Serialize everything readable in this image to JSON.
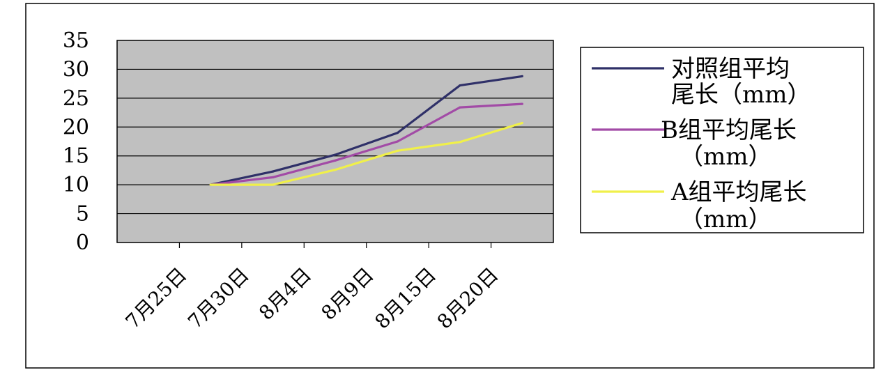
{
  "chart_data": {
    "type": "line",
    "categories": [
      "7月25日",
      "7月30日",
      "8月4日",
      "8月9日",
      "8月15日",
      "8月20日"
    ],
    "ylim": [
      0,
      35
    ],
    "yticks": [
      0,
      5,
      10,
      15,
      20,
      25,
      30,
      35
    ],
    "grid": true,
    "legend_position": "right",
    "plot_background": "#c0c0c0",
    "series": [
      {
        "name": "对照组平均尾长（mm）",
        "legend_lines": [
          "对照组平均",
          "尾长（mm）"
        ],
        "color": "#2f3068",
        "values": [
          10,
          12.3,
          15.2,
          19.0,
          27.2,
          28.8
        ]
      },
      {
        "name": "B组平均尾长（mm）",
        "legend_lines": [
          "B组平均尾长",
          "（mm）"
        ],
        "color": "#a24ba6",
        "values": [
          10,
          11.3,
          14.2,
          17.5,
          23.4,
          24.0
        ]
      },
      {
        "name": "A组平均尾长（mm）",
        "legend_lines": [
          "A组平均尾长",
          "（mm）"
        ],
        "color": "#f0f04a",
        "values": [
          10,
          10.0,
          12.6,
          15.9,
          17.4,
          20.7
        ]
      }
    ]
  }
}
